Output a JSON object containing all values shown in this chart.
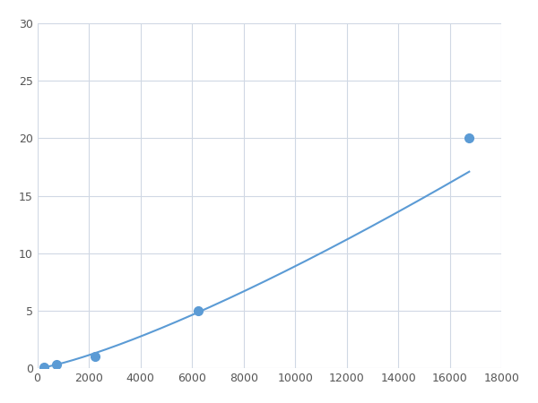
{
  "x": [
    250,
    750,
    2250,
    6250,
    16750
  ],
  "y": [
    0.1,
    0.3,
    1.0,
    5.0,
    20.0
  ],
  "line_color": "#5b9bd5",
  "marker_color": "#5b9bd5",
  "marker_size": 7,
  "linewidth": 1.5,
  "xlim": [
    0,
    18000
  ],
  "ylim": [
    0,
    30
  ],
  "xticks": [
    0,
    2000,
    4000,
    6000,
    8000,
    10000,
    12000,
    14000,
    16000,
    18000
  ],
  "yticks": [
    0,
    5,
    10,
    15,
    20,
    25,
    30
  ],
  "grid_color": "#d0d8e4",
  "background_color": "#ffffff",
  "figure_bg": "#ffffff"
}
